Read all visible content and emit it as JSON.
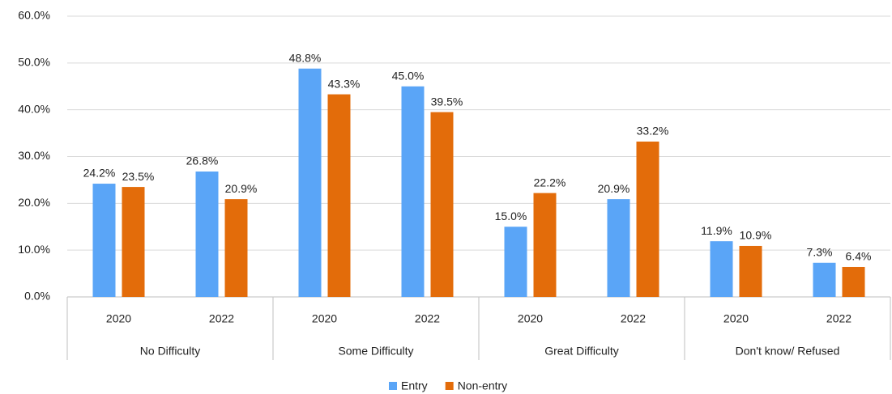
{
  "chart_data": {
    "type": "bar",
    "categories": [
      "2020",
      "2022",
      "2020",
      "2022",
      "2020",
      "2022",
      "2020",
      "2022"
    ],
    "category_groups": [
      "No Difficulty",
      "Some Difficulty",
      "Great Difficulty",
      "Don't know/ Refused"
    ],
    "series": [
      {
        "name": "Entry",
        "color": "#5aa5f7",
        "values": [
          24.2,
          26.8,
          48.8,
          45.0,
          15.0,
          20.9,
          11.9,
          7.3
        ],
        "value_labels": [
          "24.2%",
          "26.8%",
          "48.8%",
          "45.0%",
          "15.0%",
          "20.9%",
          "11.9%",
          "7.3%"
        ]
      },
      {
        "name": "Non-entry",
        "color": "#e36c0a",
        "values": [
          23.5,
          20.9,
          43.3,
          39.5,
          22.2,
          33.2,
          10.9,
          6.4
        ],
        "value_labels": [
          "23.5%",
          "20.9%",
          "43.3%",
          "39.5%",
          "22.2%",
          "33.2%",
          "10.9%",
          "6.4%"
        ]
      }
    ],
    "ylim": [
      0,
      60
    ],
    "yticks": [
      {
        "value": 0,
        "label": "0.0%"
      },
      {
        "value": 10,
        "label": "10.0%"
      },
      {
        "value": 20,
        "label": "20.0%"
      },
      {
        "value": 30,
        "label": "30.0%"
      },
      {
        "value": 40,
        "label": "40.0%"
      },
      {
        "value": 50,
        "label": "50.0%"
      },
      {
        "value": 60,
        "label": "60.0%"
      }
    ],
    "grid": true,
    "legend": "bottom"
  }
}
